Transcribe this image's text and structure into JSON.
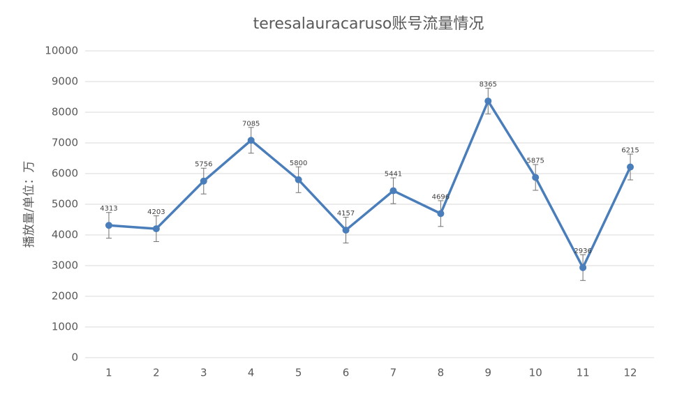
{
  "chart_data": {
    "type": "line",
    "title": "teresalauracaruso账号流量情况",
    "y_label": "播放量/单位：万",
    "categories": [
      "1",
      "2",
      "3",
      "4",
      "5",
      "6",
      "7",
      "8",
      "9",
      "10",
      "11",
      "12"
    ],
    "series": [
      {
        "name": "播放量",
        "color": "#4a7ebb",
        "values": [
          4313,
          4203,
          5756,
          7085,
          5800,
          4157,
          5441,
          4696,
          8365,
          5875,
          2936,
          6215
        ],
        "errors": [
          420,
          420,
          420,
          420,
          420,
          420,
          420,
          420,
          420,
          420,
          420,
          420
        ]
      }
    ],
    "ylim": [
      0,
      10000
    ],
    "yticks": [
      0,
      1000,
      2000,
      3000,
      4000,
      5000,
      6000,
      7000,
      8000,
      9000,
      10000
    ],
    "grid": true
  }
}
